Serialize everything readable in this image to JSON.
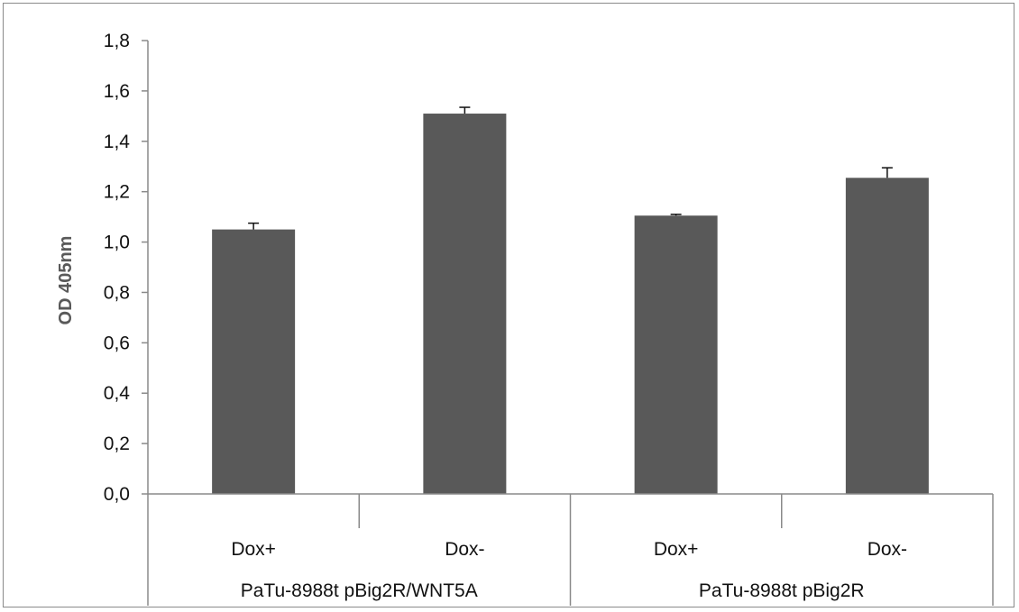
{
  "chart_data": {
    "type": "bar",
    "ylabel": "OD 405nm",
    "ylim": [
      0,
      1.8
    ],
    "ytick_values": [
      0,
      0.2,
      0.4,
      0.6,
      0.8,
      1.0,
      1.2,
      1.4,
      1.6,
      1.8
    ],
    "ytick_labels": [
      "0,0",
      "0,2",
      "0,4",
      "0,6",
      "0,8",
      "1,0",
      "1,2",
      "1,4",
      "1,6",
      "1,8"
    ],
    "categories": [
      "Dox+",
      "Dox-",
      "Dox+",
      "Dox-"
    ],
    "groups": [
      {
        "label": "PaTu-8988t pBig2R/WNT5A",
        "size": 2
      },
      {
        "label": "PaTu-8988t pBig2R",
        "size": 2
      }
    ],
    "values": [
      1.05,
      1.51,
      1.105,
      1.255
    ],
    "errors": [
      0.025,
      0.025,
      0.005,
      0.04
    ],
    "bar_color": "#595959",
    "grid": false,
    "legend": "none"
  }
}
